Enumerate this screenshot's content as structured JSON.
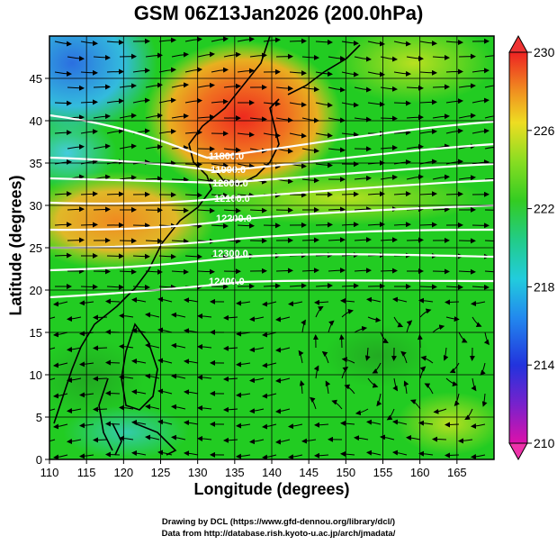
{
  "title": "GSM 06Z13Jan2026 (200.0hPa)",
  "xlabel": "Longitude (degrees)",
  "ylabel": "Latitude  (degrees)",
  "credit_line1": "Drawing by DCL (https://www.gfd-dennou.org/library/dcl/)",
  "credit_line2": "Data from http://database.rish.kyoto-u.ac.jp/arch/jmadata/",
  "map": {
    "lon_range": [
      110,
      170
    ],
    "lat_range": [
      0,
      50
    ],
    "x_ticks": [
      "110",
      "115",
      "120",
      "125",
      "130",
      "135",
      "140",
      "145",
      "150",
      "155",
      "160",
      "165"
    ],
    "y_ticks": [
      "0",
      "5",
      "10",
      "15",
      "20",
      "25",
      "30",
      "35",
      "40",
      "45"
    ],
    "contour_labels": [
      "11800.0",
      "11900.0",
      "12000.0",
      "12100.0",
      "12200.0",
      "12300.0",
      "12400.0"
    ],
    "colors": {
      "background": "#22cc22",
      "warm": "#ee3322",
      "cool": "#33bbdd",
      "contour": "#ffffff",
      "streamline": "#000000"
    }
  },
  "colorbar": {
    "ticks": [
      "230",
      "226",
      "222",
      "218",
      "214",
      "210"
    ],
    "min": 210,
    "max": 230
  }
}
